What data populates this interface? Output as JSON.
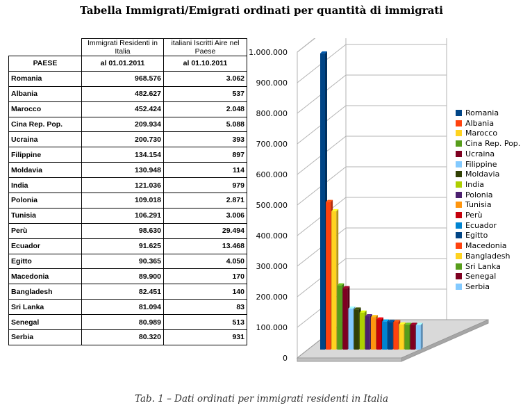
{
  "title": "Tabella Immigrati/Emigrati ordinati per quantità di immigrati",
  "caption": "Tab. 1 – Dati ordinati per immigrati residenti in Italia",
  "table": {
    "col1_header": "PAESE",
    "col2_header": "Immigrati Residenti in Italia",
    "col2_sub": "al 01.01.2011",
    "col3_header": "italiani Iscritti Aire nel Paese",
    "col3_sub": "al 01.10.2011",
    "rows": [
      {
        "country": "Romania",
        "immigrati": "968.576",
        "aire": "3.062"
      },
      {
        "country": "Albania",
        "immigrati": "482.627",
        "aire": "537"
      },
      {
        "country": "Marocco",
        "immigrati": "452.424",
        "aire": "2.048"
      },
      {
        "country": "Cina Rep. Pop.",
        "immigrati": "209.934",
        "aire": "5.088"
      },
      {
        "country": "Ucraina",
        "immigrati": "200.730",
        "aire": "393"
      },
      {
        "country": "Filippine",
        "immigrati": "134.154",
        "aire": "897"
      },
      {
        "country": "Moldavia",
        "immigrati": "130.948",
        "aire": "114"
      },
      {
        "country": "India",
        "immigrati": "121.036",
        "aire": "979"
      },
      {
        "country": "Polonia",
        "immigrati": "109.018",
        "aire": "2.871"
      },
      {
        "country": "Tunisia",
        "immigrati": "106.291",
        "aire": "3.006"
      },
      {
        "country": "Perù",
        "immigrati": "98.630",
        "aire": "29.494"
      },
      {
        "country": "Ecuador",
        "immigrati": "91.625",
        "aire": "13.468"
      },
      {
        "country": "Egitto",
        "immigrati": "90.365",
        "aire": "4.050"
      },
      {
        "country": "Macedonia",
        "immigrati": "89.900",
        "aire": "170"
      },
      {
        "country": "Bangladesh",
        "immigrati": "82.451",
        "aire": "140"
      },
      {
        "country": "Sri Lanka",
        "immigrati": "81.094",
        "aire": "83"
      },
      {
        "country": "Senegal",
        "immigrati": "80.989",
        "aire": "513"
      },
      {
        "country": "Serbia",
        "immigrati": "80.320",
        "aire": "931"
      }
    ]
  },
  "chart_data": {
    "type": "bar",
    "title": "",
    "xlabel": "",
    "ylabel": "",
    "ylim": [
      0,
      1000000
    ],
    "y_ticks": [
      "0",
      "100.000",
      "200.000",
      "300.000",
      "400.000",
      "500.000",
      "600.000",
      "700.000",
      "800.000",
      "900.000",
      "1.000.000"
    ],
    "legend_position": "right",
    "series": [
      {
        "name": "Romania",
        "value": 968576,
        "color": "#004586"
      },
      {
        "name": "Albania",
        "value": 482627,
        "color": "#ff420e"
      },
      {
        "name": "Marocco",
        "value": 452424,
        "color": "#ffd320"
      },
      {
        "name": "Cina Rep. Pop.",
        "value": 209934,
        "color": "#579d1c"
      },
      {
        "name": "Ucraina",
        "value": 200730,
        "color": "#7e0021"
      },
      {
        "name": "Filippine",
        "value": 134154,
        "color": "#83caff"
      },
      {
        "name": "Moldavia",
        "value": 130948,
        "color": "#314004"
      },
      {
        "name": "India",
        "value": 121036,
        "color": "#aecf00"
      },
      {
        "name": "Polonia",
        "value": 109018,
        "color": "#4b1f6f"
      },
      {
        "name": "Tunisia",
        "value": 106291,
        "color": "#ff950e"
      },
      {
        "name": "Perù",
        "value": 98630,
        "color": "#c5000b"
      },
      {
        "name": "Ecuador",
        "value": 91625,
        "color": "#0084d1"
      },
      {
        "name": "Egitto",
        "value": 90365,
        "color": "#004586"
      },
      {
        "name": "Macedonia",
        "value": 89900,
        "color": "#ff420e"
      },
      {
        "name": "Bangladesh",
        "value": 82451,
        "color": "#ffd320"
      },
      {
        "name": "Sri Lanka",
        "value": 81094,
        "color": "#579d1c"
      },
      {
        "name": "Senegal",
        "value": 80989,
        "color": "#7e0021"
      },
      {
        "name": "Serbia",
        "value": 80320,
        "color": "#83caff"
      }
    ]
  }
}
